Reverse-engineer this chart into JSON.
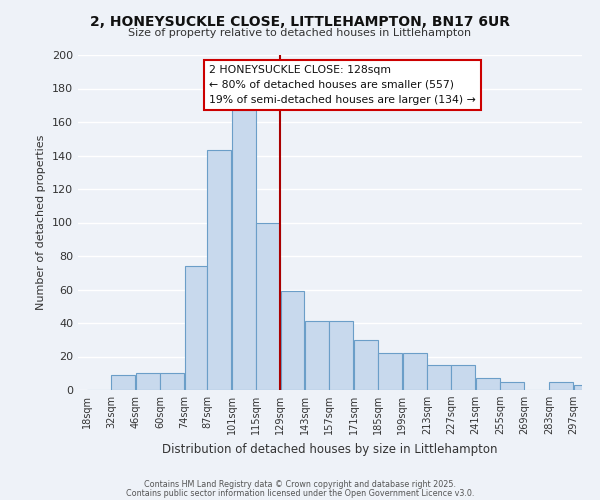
{
  "title1": "2, HONEYSUCKLE CLOSE, LITTLEHAMPTON, BN17 6UR",
  "title2": "Size of property relative to detached houses in Littlehampton",
  "xlabel": "Distribution of detached houses by size in Littlehampton",
  "ylabel": "Number of detached properties",
  "bar_bins": [
    18,
    32,
    46,
    60,
    74,
    87,
    101,
    115,
    129,
    143,
    157,
    171,
    185,
    199,
    213,
    227,
    241,
    255,
    269,
    283,
    297
  ],
  "bar_heights": [
    0,
    9,
    10,
    10,
    74,
    143,
    167,
    100,
    59,
    41,
    41,
    30,
    22,
    22,
    15,
    15,
    7,
    5,
    0,
    5,
    3
  ],
  "bar_color": "#c8d9ed",
  "bar_edge_color": "#6b9ec8",
  "x_tick_labels": [
    "18sqm",
    "32sqm",
    "46sqm",
    "60sqm",
    "74sqm",
    "87sqm",
    "101sqm",
    "115sqm",
    "129sqm",
    "143sqm",
    "157sqm",
    "171sqm",
    "185sqm",
    "199sqm",
    "213sqm",
    "227sqm",
    "241sqm",
    "255sqm",
    "269sqm",
    "283sqm",
    "297sqm"
  ],
  "ylim": [
    0,
    200
  ],
  "yticks": [
    0,
    20,
    40,
    60,
    80,
    100,
    120,
    140,
    160,
    180,
    200
  ],
  "vline_x": 129,
  "vline_color": "#aa0000",
  "annotation_title": "2 HONEYSUCKLE CLOSE: 128sqm",
  "annotation_line1": "← 80% of detached houses are smaller (557)",
  "annotation_line2": "19% of semi-detached houses are larger (134) →",
  "annotation_box_color": "#ffffff",
  "annotation_box_edge": "#cc0000",
  "bg_color": "#eef2f8",
  "grid_color": "#ffffff",
  "footer1": "Contains HM Land Registry data © Crown copyright and database right 2025.",
  "footer2": "Contains public sector information licensed under the Open Government Licence v3.0."
}
